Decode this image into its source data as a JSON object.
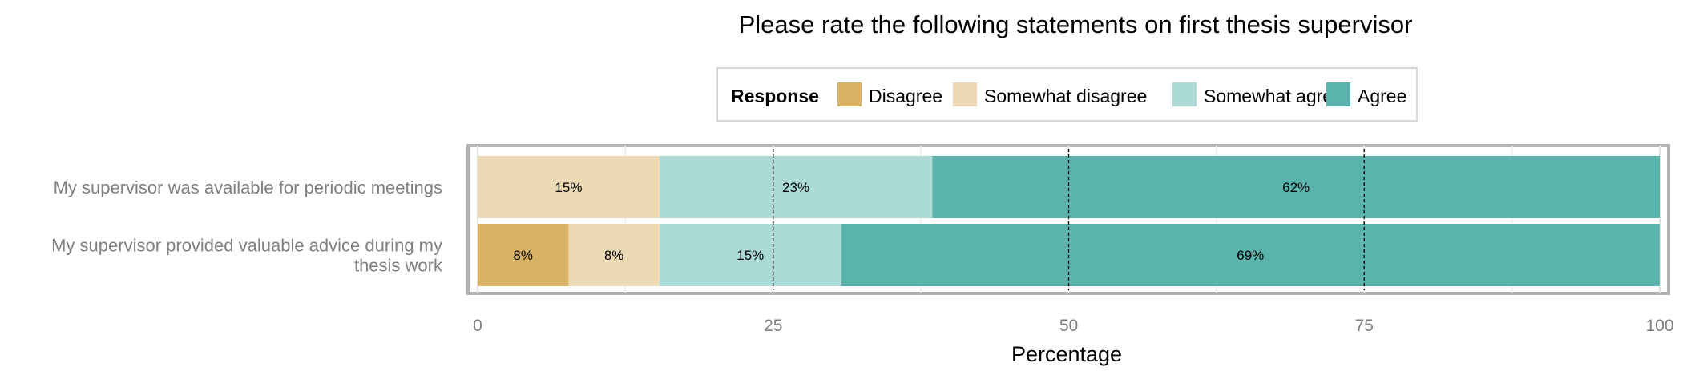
{
  "chart_data": {
    "type": "bar",
    "orientation": "horizontal",
    "stacked": true,
    "title": "Please rate the following statements on first thesis supervisor",
    "xlabel": "Percentage",
    "ylabel": "",
    "xlim": [
      0,
      100
    ],
    "xticks": [
      0,
      25,
      50,
      75,
      100
    ],
    "grid": true,
    "reference_lines": [
      25,
      50,
      75
    ],
    "legend": {
      "title": "Response",
      "position": "top",
      "entries": [
        "Disagree",
        "Somewhat disagree",
        "Somewhat agree",
        "Agree"
      ]
    },
    "categories": [
      "My supervisor was available for periodic meetings",
      "My supervisor provided valuable advice during my thesis work"
    ],
    "series": [
      {
        "name": "Disagree",
        "color": "#d8b365",
        "values": [
          0,
          7.69
        ],
        "labels": [
          "",
          "8%"
        ]
      },
      {
        "name": "Somewhat disagree",
        "color": "#ebdab3",
        "values": [
          15.38,
          7.69
        ],
        "labels": [
          "15%",
          "8%"
        ]
      },
      {
        "name": "Somewhat agree",
        "color": "#acdad6",
        "values": [
          23.08,
          15.38
        ],
        "labels": [
          "23%",
          "15%"
        ]
      },
      {
        "name": "Agree",
        "color": "#5ab4ac",
        "values": [
          61.54,
          69.23
        ],
        "labels": [
          "62%",
          "69%"
        ]
      }
    ]
  }
}
